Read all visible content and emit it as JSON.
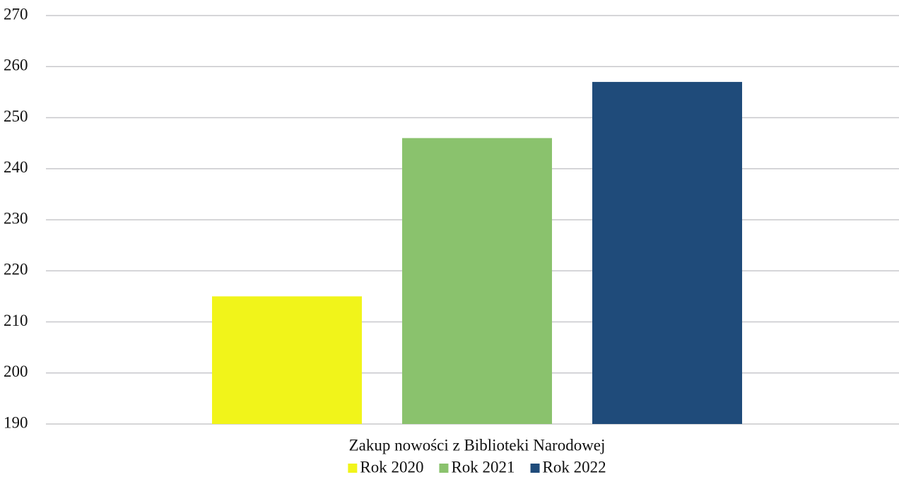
{
  "chart_data": {
    "type": "bar",
    "categories": [
      "Zakup nowości z Biblioteki Narodowej"
    ],
    "series": [
      {
        "name": "Rok 2020",
        "color": "#f1f41a",
        "values": [
          215
        ]
      },
      {
        "name": "Rok 2021",
        "color": "#8ac26d",
        "values": [
          246
        ]
      },
      {
        "name": "Rok 2022",
        "color": "#1f4b7a",
        "values": [
          257
        ]
      }
    ],
    "ylim": [
      190,
      270
    ],
    "yticks": [
      190,
      200,
      210,
      220,
      230,
      240,
      250,
      260,
      270
    ],
    "grid": true,
    "legend": "bottom"
  }
}
